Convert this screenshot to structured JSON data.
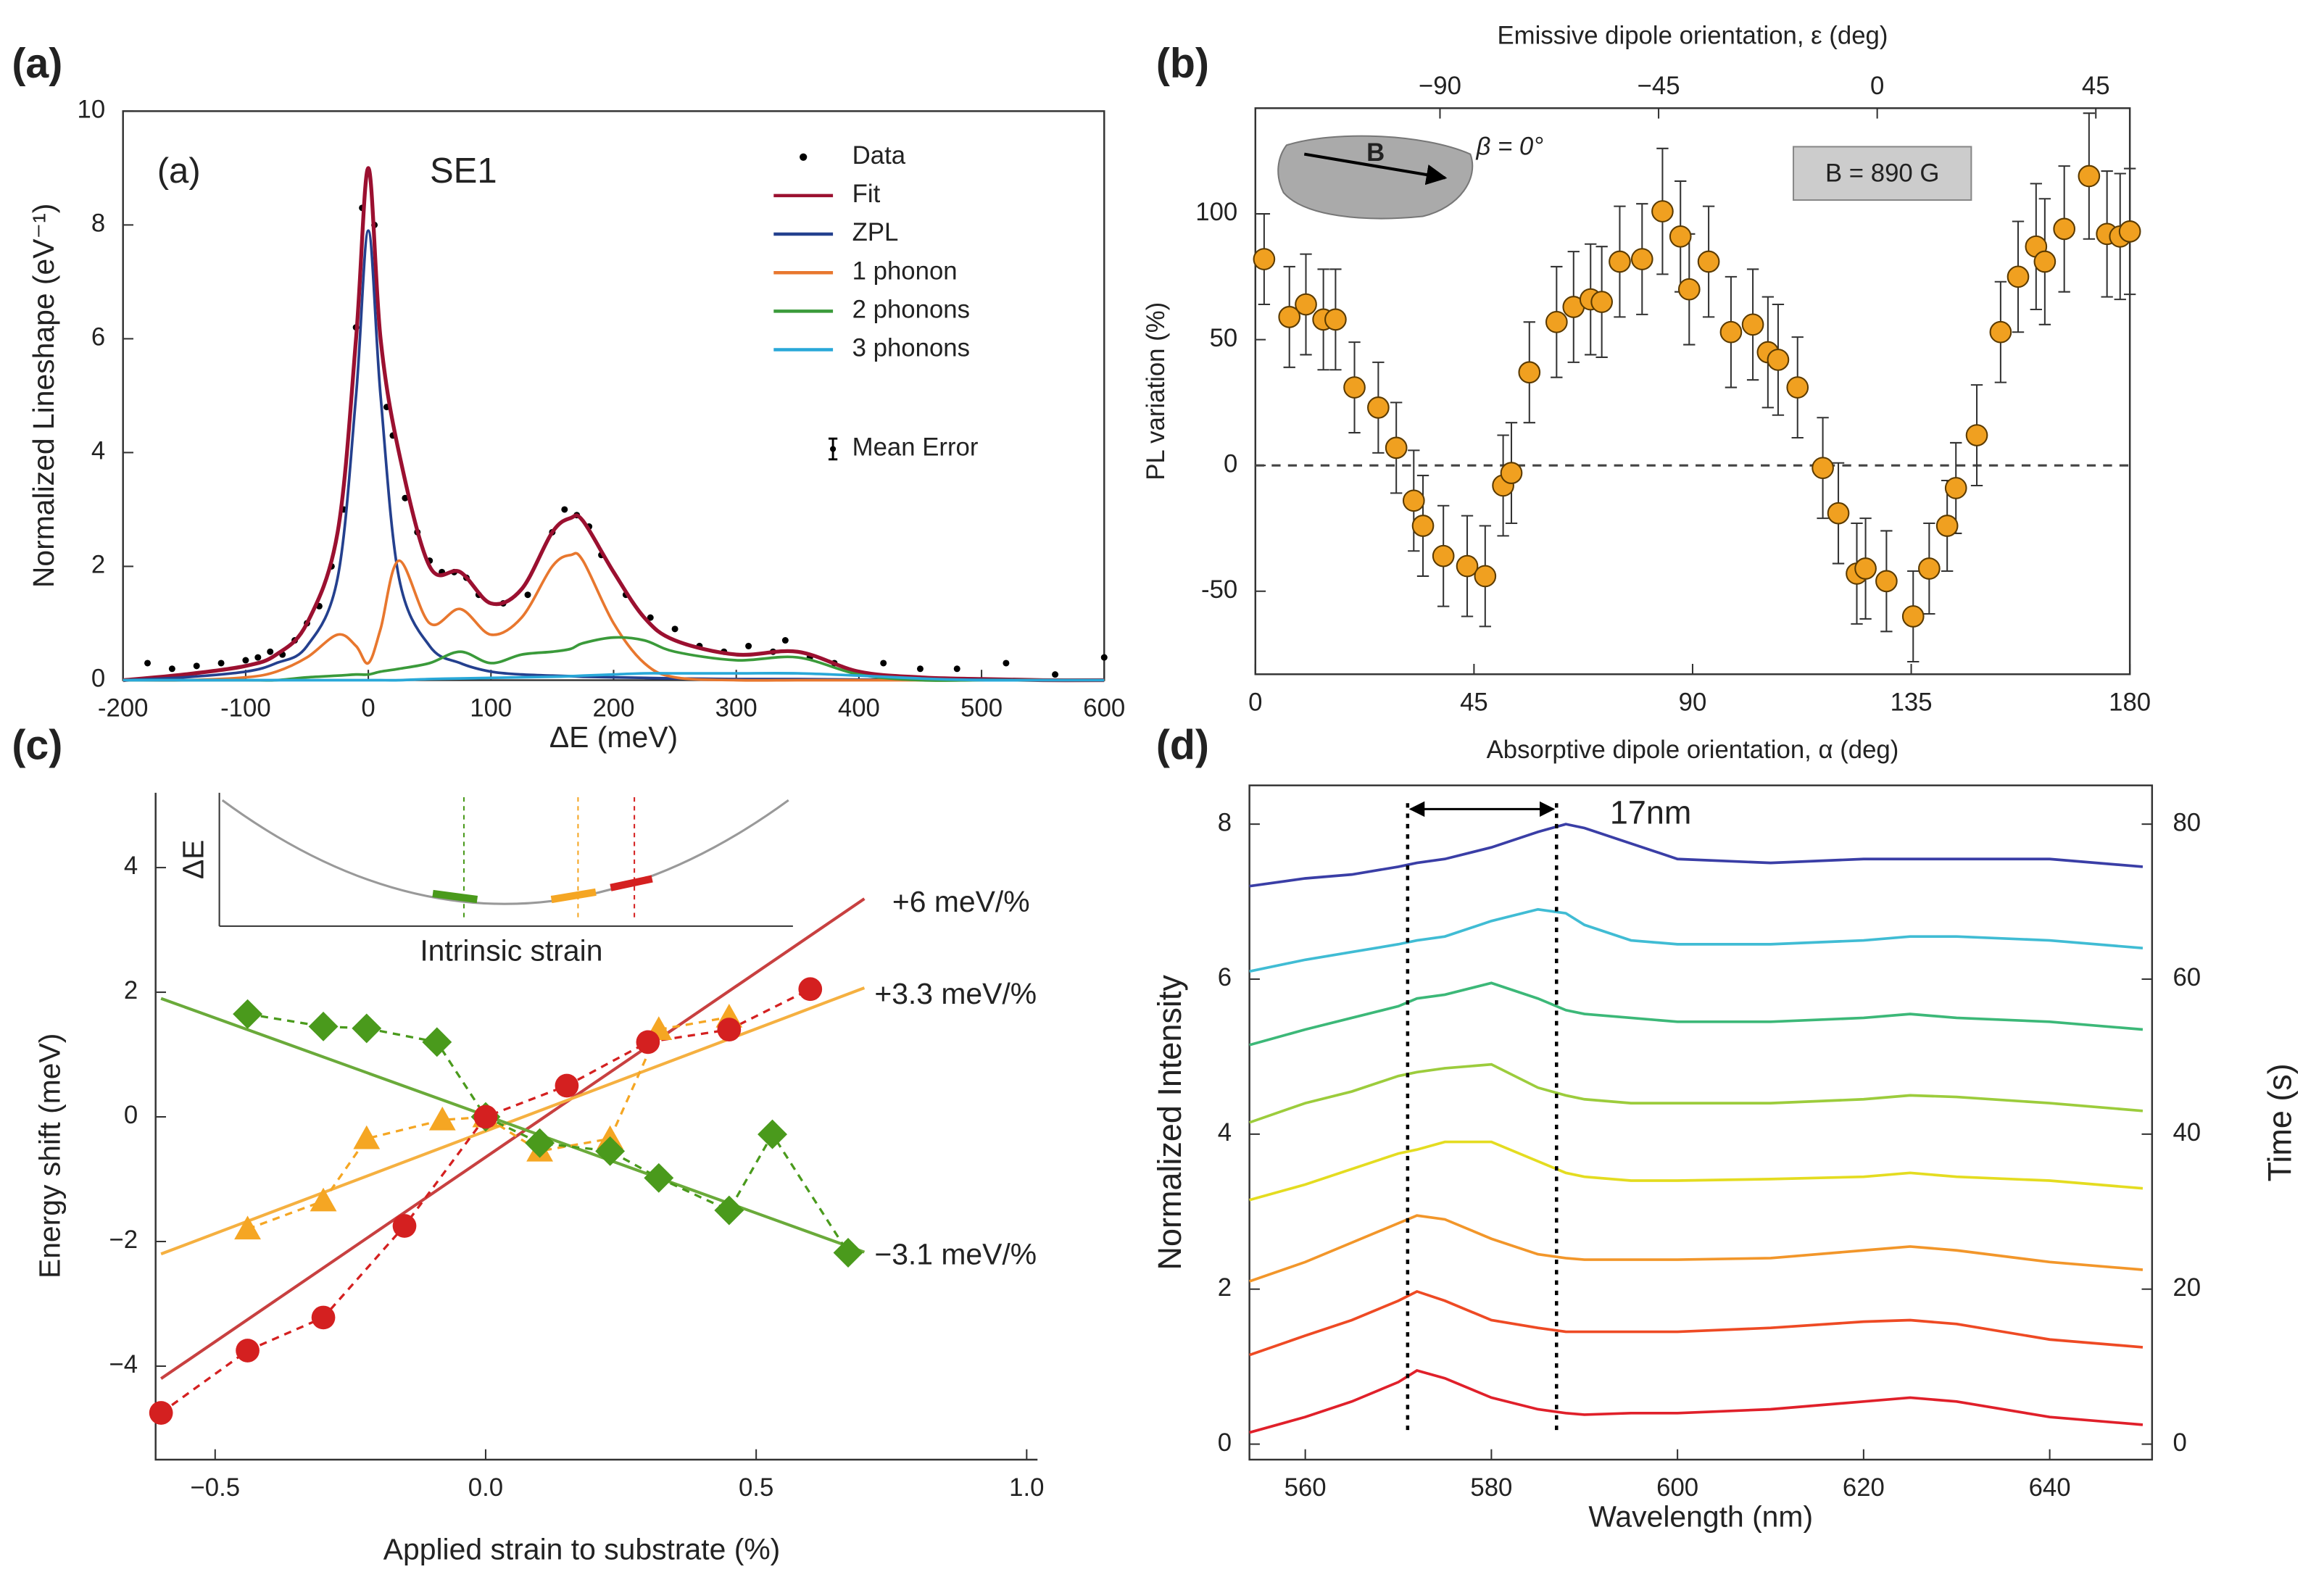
{
  "chart_data": [
    {
      "type": "line",
      "panel_label": "(a)",
      "inner_label": "(a)",
      "annotation": "SE1",
      "x_label": "ΔE (meV)",
      "y_label": "Normalized Lineshape (eV⁻¹)",
      "xlim": [
        -200,
        600
      ],
      "ylim": [
        0,
        10
      ],
      "xticks": [
        -200,
        -100,
        0,
        100,
        200,
        300,
        400,
        500,
        600
      ],
      "yticks": [
        0,
        2,
        4,
        6,
        8,
        10
      ],
      "x": [
        -200,
        -150,
        -100,
        -75,
        -50,
        -25,
        -10,
        0,
        10,
        25,
        50,
        75,
        100,
        125,
        150,
        165,
        175,
        200,
        225,
        250,
        300,
        350,
        400,
        450,
        500,
        550,
        600
      ],
      "series": [
        {
          "name": "Fit",
          "color": "#9b1030",
          "values": [
            0,
            0.1,
            0.25,
            0.45,
            1.0,
            2.6,
            6.0,
            9.0,
            6.0,
            4.0,
            2.0,
            1.9,
            1.35,
            1.6,
            2.6,
            2.85,
            2.8,
            1.9,
            1.1,
            0.7,
            0.45,
            0.5,
            0.15,
            0.05,
            0.02,
            0,
            0
          ]
        },
        {
          "name": "ZPL",
          "color": "#24408e",
          "values": [
            0,
            0.05,
            0.15,
            0.3,
            0.6,
            1.8,
            5.0,
            7.9,
            5.0,
            1.8,
            0.6,
            0.3,
            0.15,
            0.1,
            0.08,
            0.07,
            0.06,
            0.05,
            0.04,
            0.03,
            0.02,
            0.02,
            0.01,
            0.01,
            0.01,
            0,
            0
          ]
        },
        {
          "name": "1 phonon",
          "color": "#e8772e",
          "values": [
            0,
            0,
            0.05,
            0.15,
            0.4,
            0.8,
            0.6,
            0.3,
            0.9,
            2.1,
            1.0,
            1.25,
            0.8,
            1.1,
            2.0,
            2.2,
            2.1,
            1.0,
            0.3,
            0.05,
            0,
            0,
            0,
            0,
            0,
            0,
            0
          ]
        },
        {
          "name": "2 phonons",
          "color": "#3a9a3a",
          "values": [
            0,
            0,
            0,
            0,
            0.05,
            0.08,
            0.1,
            0.1,
            0.15,
            0.2,
            0.3,
            0.5,
            0.3,
            0.45,
            0.5,
            0.55,
            0.65,
            0.75,
            0.7,
            0.5,
            0.35,
            0.4,
            0.1,
            0,
            0,
            0,
            0
          ]
        },
        {
          "name": "3 phonons",
          "color": "#29a8d8",
          "values": [
            0,
            0,
            0,
            0,
            0,
            0,
            0,
            0,
            0,
            0,
            0.02,
            0.03,
            0.04,
            0.05,
            0.06,
            0.07,
            0.08,
            0.1,
            0.12,
            0.12,
            0.12,
            0.12,
            0.08,
            0.03,
            0,
            0,
            0
          ]
        }
      ],
      "scatter": {
        "name": "Data",
        "color": "#000000",
        "x": [
          -180,
          -160,
          -140,
          -120,
          -100,
          -90,
          -80,
          -70,
          -60,
          -50,
          -40,
          -30,
          -20,
          -10,
          -5,
          5,
          15,
          20,
          30,
          40,
          50,
          60,
          70,
          80,
          90,
          110,
          130,
          150,
          160,
          170,
          180,
          190,
          210,
          230,
          250,
          270,
          290,
          310,
          330,
          340,
          360,
          380,
          420,
          450,
          480,
          520,
          560,
          600
        ],
        "values": [
          0.3,
          0.2,
          0.25,
          0.3,
          0.35,
          0.4,
          0.5,
          0.45,
          0.7,
          1.0,
          1.3,
          2.0,
          3.0,
          6.2,
          8.3,
          8.0,
          4.8,
          4.3,
          3.2,
          2.6,
          2.1,
          1.9,
          1.9,
          1.8,
          1.5,
          1.35,
          1.5,
          2.6,
          3.0,
          2.9,
          2.7,
          2.2,
          1.5,
          1.1,
          0.9,
          0.6,
          0.5,
          0.6,
          0.5,
          0.7,
          0.4,
          0.3,
          0.3,
          0.2,
          0.2,
          0.3,
          0.1,
          0.4
        ]
      },
      "error_legend": "Mean Error"
    },
    {
      "type": "errorbar",
      "panel_label": "(b)",
      "x_label": "Absorptive dipole orientation, α (deg)",
      "y_label": "PL variation (%)",
      "x2_label": "Emissive dipole orientation, ε (deg)",
      "xlim": [
        0,
        180
      ],
      "ylim": [
        -83,
        142
      ],
      "x2lim": [
        -128,
        52
      ],
      "xticks": [
        0,
        45,
        90,
        135,
        180
      ],
      "yticks": [
        -50,
        0,
        50,
        100
      ],
      "x2ticks": [
        {
          "value": -90,
          "label": "−90"
        },
        {
          "value": -45,
          "label": "−45"
        },
        0,
        45
      ],
      "field_label": "B = 890 G",
      "vector_label": "B",
      "angle_label": "β = 0°",
      "color": "#f0a020",
      "x": [
        1.8,
        7,
        10.4,
        14,
        16.5,
        20.4,
        25.3,
        29,
        32.6,
        34.5,
        38.7,
        43.6,
        47.3,
        51,
        52.7,
        56.4,
        62,
        65.5,
        69,
        71.3,
        75,
        79.6,
        83.8,
        87.5,
        89.3,
        93.3,
        97.9,
        102.4,
        105.5,
        107.6,
        111.6,
        116.8,
        120,
        123.8,
        125.6,
        129.9,
        135.4,
        138.7,
        142.4,
        144.2,
        148.5,
        153.4,
        157,
        160.7,
        162.5,
        166.5,
        171.6,
        175.3,
        178,
        180
      ],
      "values": [
        82,
        59,
        64,
        58,
        58,
        31,
        23,
        7,
        -14,
        -24,
        -36,
        -40,
        -44,
        -8,
        -3,
        37,
        57,
        63,
        66,
        65,
        81,
        82,
        101,
        91,
        70,
        81,
        53,
        56,
        45,
        42,
        31,
        -1,
        -19,
        -43,
        -41,
        -46,
        -60,
        -41,
        -24,
        -9,
        12,
        53,
        75,
        87,
        81,
        94,
        115,
        92,
        91,
        93
      ],
      "errors": [
        18,
        20,
        20,
        20,
        20,
        18,
        18,
        18,
        20,
        20,
        20,
        20,
        20,
        20,
        20,
        20,
        22,
        22,
        22,
        22,
        22,
        22,
        25,
        22,
        22,
        22,
        22,
        22,
        22,
        22,
        20,
        20,
        20,
        20,
        20,
        20,
        18,
        18,
        18,
        18,
        20,
        20,
        22,
        25,
        25,
        25,
        25,
        25,
        25,
        25
      ]
    },
    {
      "type": "scatter",
      "panel_label": "(c)",
      "x_label": "Applied strain to substrate (%)",
      "y_label": "Energy shift (meV)",
      "inset_y_label": "ΔE",
      "inset_x_label": "Intrinsic strain",
      "xlim": [
        -0.61,
        1.02
      ],
      "ylim": [
        -5.5,
        5.2
      ],
      "xticks": [
        {
          "value": -0.5,
          "label": "−0.5"
        },
        {
          "value": 0,
          "label": "0.0"
        },
        0.5,
        {
          "value": 1,
          "label": "1.0"
        }
      ],
      "yticks": [
        {
          "value": -4,
          "label": "−4"
        },
        {
          "value": -2,
          "label": "−2"
        },
        0,
        2,
        4
      ],
      "series": [
        {
          "color": "#d42020",
          "marker": "circle",
          "x": [
            -0.6,
            -0.44,
            -0.3,
            -0.15,
            0,
            0.15,
            0.3,
            0.45,
            0.6
          ],
          "values": [
            -4.75,
            -3.75,
            -3.22,
            -1.75,
            0,
            0.5,
            1.2,
            1.4,
            2.05
          ]
        },
        {
          "color": "#f5a623",
          "marker": "triangle",
          "x": [
            -0.44,
            -0.3,
            -0.22,
            -0.08,
            0,
            0.1,
            0.23,
            0.32,
            0.45
          ],
          "values": [
            -1.8,
            -1.35,
            -0.35,
            -0.05,
            0,
            -0.55,
            -0.35,
            1.4,
            1.6
          ]
        },
        {
          "color": "#4a9a1c",
          "marker": "diamond",
          "x": [
            -0.44,
            -0.3,
            -0.22,
            -0.09,
            0,
            0.1,
            0.23,
            0.32,
            0.45,
            0.53,
            0.67
          ],
          "values": [
            1.65,
            1.45,
            1.42,
            1.2,
            0,
            -0.42,
            -0.55,
            -0.98,
            -1.5,
            -0.28,
            -2.18
          ]
        }
      ],
      "fits": [
        {
          "color": "#c84040",
          "label": "+6 meV/%",
          "x": [
            -0.6,
            0.7
          ],
          "values": [
            -4.2,
            3.5
          ]
        },
        {
          "color": "#f5b040",
          "label": "+3.3 meV/%",
          "x": [
            -0.6,
            0.7
          ],
          "values": [
            -2.2,
            2.07
          ]
        },
        {
          "color": "#6aaa3a",
          "label": "−3.1 meV/%",
          "x": [
            -0.6,
            0.7
          ],
          "values": [
            1.9,
            -2.17
          ]
        }
      ]
    },
    {
      "type": "line",
      "panel_label": "(d)",
      "x_label": "Wavelength (nm)",
      "y_label": "Normalized Intensity",
      "y2_label": "Time (s)",
      "annotation": "17nm",
      "markers": [
        571,
        587
      ],
      "xlim": [
        554,
        651
      ],
      "ylim": [
        -0.2,
        8.5
      ],
      "y2lim": [
        -2,
        85
      ],
      "xticks": [
        560,
        580,
        600,
        620,
        640
      ],
      "yticks": [
        0,
        2,
        4,
        6,
        8
      ],
      "y2ticks": [
        0,
        20,
        40,
        60,
        80
      ],
      "x": [
        554,
        560,
        565,
        570,
        572,
        575,
        580,
        585,
        588,
        590,
        595,
        600,
        610,
        620,
        625,
        630,
        640,
        650
      ],
      "series": [
        {
          "color": "#e0202a",
          "values": [
            0.15,
            0.35,
            0.55,
            0.8,
            0.95,
            0.85,
            0.6,
            0.45,
            0.4,
            0.38,
            0.4,
            0.4,
            0.45,
            0.55,
            0.6,
            0.55,
            0.35,
            0.25
          ]
        },
        {
          "color": "#ee4a24",
          "values": [
            1.15,
            1.4,
            1.6,
            1.85,
            1.97,
            1.85,
            1.6,
            1.5,
            1.45,
            1.45,
            1.45,
            1.45,
            1.5,
            1.58,
            1.6,
            1.55,
            1.35,
            1.25
          ]
        },
        {
          "color": "#f2962a",
          "values": [
            2.1,
            2.35,
            2.6,
            2.85,
            2.95,
            2.9,
            2.65,
            2.45,
            2.4,
            2.38,
            2.38,
            2.38,
            2.4,
            2.5,
            2.55,
            2.5,
            2.35,
            2.25
          ]
        },
        {
          "color": "#e4dc20",
          "values": [
            3.15,
            3.35,
            3.55,
            3.75,
            3.8,
            3.9,
            3.9,
            3.65,
            3.5,
            3.45,
            3.4,
            3.4,
            3.42,
            3.45,
            3.5,
            3.45,
            3.4,
            3.3
          ]
        },
        {
          "color": "#9ccc3c",
          "values": [
            4.15,
            4.4,
            4.55,
            4.75,
            4.8,
            4.85,
            4.9,
            4.6,
            4.5,
            4.45,
            4.4,
            4.4,
            4.4,
            4.45,
            4.5,
            4.48,
            4.4,
            4.3
          ]
        },
        {
          "color": "#3cb878",
          "values": [
            5.15,
            5.35,
            5.5,
            5.65,
            5.75,
            5.8,
            5.95,
            5.75,
            5.6,
            5.55,
            5.5,
            5.45,
            5.45,
            5.5,
            5.55,
            5.5,
            5.45,
            5.35
          ]
        },
        {
          "color": "#40bcd4",
          "values": [
            6.1,
            6.25,
            6.35,
            6.45,
            6.5,
            6.55,
            6.75,
            6.9,
            6.85,
            6.7,
            6.5,
            6.45,
            6.45,
            6.5,
            6.55,
            6.55,
            6.5,
            6.4
          ]
        },
        {
          "color": "#3a3ea6",
          "values": [
            7.2,
            7.3,
            7.35,
            7.45,
            7.5,
            7.55,
            7.7,
            7.9,
            8.0,
            7.95,
            7.75,
            7.55,
            7.5,
            7.55,
            7.55,
            7.55,
            7.55,
            7.45
          ]
        }
      ]
    }
  ]
}
